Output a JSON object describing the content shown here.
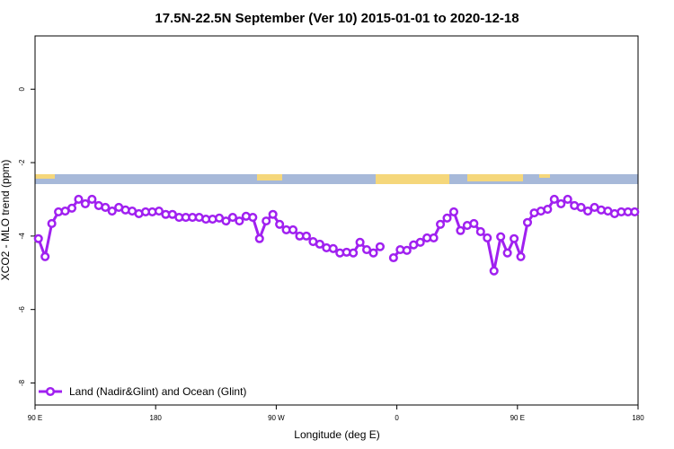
{
  "chart_data": {
    "type": "line",
    "title": "17.5N-22.5N September (Ver 10)   2015-01-01 to 2020-12-18",
    "xlabel": "Longitude (deg E)",
    "ylabel": "XCO2 - MLO trend (ppm)",
    "x": [
      92.5,
      97.5,
      102.5,
      107.5,
      112.5,
      117.5,
      122.5,
      127.5,
      132.5,
      137.5,
      142.5,
      147.5,
      152.5,
      157.5,
      162.5,
      167.5,
      172.5,
      177.5,
      182.5,
      187.5,
      192.5,
      197.5,
      202.5,
      207.5,
      212.5,
      217.5,
      222.5,
      227.5,
      232.5,
      237.5,
      242.5,
      247.5,
      252.5,
      257.5,
      262.5,
      267.5,
      272.5,
      277.5,
      282.5,
      287.5,
      292.5,
      297.5,
      302.5,
      307.5,
      312.5,
      317.5,
      322.5,
      327.5,
      332.5,
      337.5,
      342.5,
      347.5,
      352.5,
      357.5,
      362.5,
      367.5,
      372.5,
      377.5,
      382.5,
      387.5,
      392.5,
      397.5,
      402.5,
      407.5,
      412.5,
      417.5,
      422.5,
      427.5,
      432.5,
      437.5,
      442.5,
      447.5,
      452.5,
      457.5,
      462.5,
      467.5,
      472.5,
      477.5,
      482.5,
      487.5,
      492.5,
      497.5,
      502.5,
      507.5,
      512.5,
      517.5,
      522.5,
      527.5,
      532.5,
      537.5
    ],
    "series": [
      {
        "name": "Land (Nadir&Glint) and Ocean (Glint)",
        "color": "#a020f0",
        "values": [
          -4.07,
          -4.56,
          -3.66,
          -3.34,
          -3.32,
          -3.24,
          -3.0,
          -3.12,
          -3.0,
          -3.17,
          -3.22,
          -3.32,
          -3.22,
          -3.29,
          -3.32,
          -3.39,
          -3.34,
          -3.34,
          -3.32,
          -3.41,
          -3.41,
          -3.49,
          -3.49,
          -3.49,
          -3.49,
          -3.54,
          -3.54,
          -3.51,
          -3.59,
          -3.49,
          -3.59,
          -3.46,
          -3.49,
          -4.07,
          -3.59,
          -3.41,
          -3.68,
          -3.83,
          -3.83,
          -4.0,
          -4.0,
          -4.15,
          -4.22,
          -4.32,
          -4.34,
          -4.46,
          -4.44,
          -4.46,
          -4.17,
          -4.37,
          -4.46,
          -4.29,
          null,
          -4.59,
          -4.37,
          -4.39,
          -4.24,
          -4.17,
          -4.05,
          -4.05,
          -3.68,
          -3.51,
          -3.34,
          -3.85,
          -3.71,
          -3.66,
          -3.88,
          -4.05,
          -4.95,
          -4.02,
          -4.46,
          -4.07,
          -4.56,
          -3.63,
          -3.37,
          -3.32,
          -3.27,
          -3.0,
          -3.12,
          -3.0,
          -3.17,
          -3.22,
          -3.32,
          -3.22,
          -3.29,
          -3.32,
          -3.39,
          -3.34,
          -3.34,
          -3.34
        ]
      }
    ],
    "xlim": [
      90,
      540
    ],
    "xticks": [
      {
        "value": 90,
        "label": "90 E"
      },
      {
        "value": 180,
        "label": "180"
      },
      {
        "value": 270,
        "label": "90 W"
      },
      {
        "value": 360,
        "label": "0"
      },
      {
        "value": 450,
        "label": "90 E"
      },
      {
        "value": 540,
        "label": "180"
      }
    ],
    "ylim": [
      -8.6,
      1.45
    ],
    "yticks": [
      0,
      -2,
      -4,
      -6,
      -8
    ],
    "legend": "bottom left"
  }
}
